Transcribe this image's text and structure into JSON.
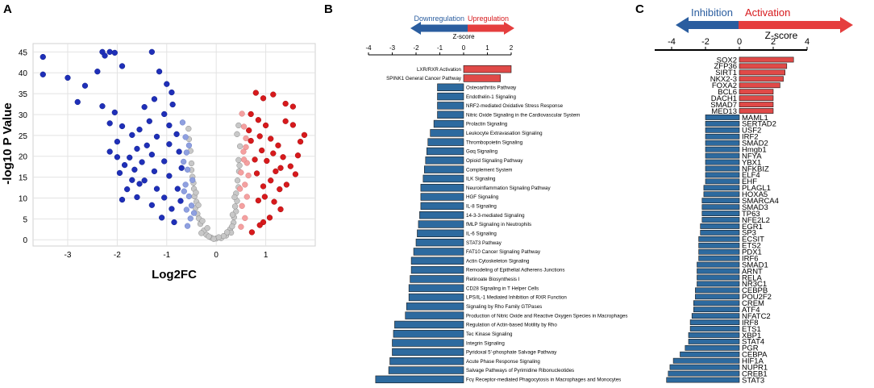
{
  "panels": {
    "a": "A",
    "b": "B",
    "c": "C"
  },
  "colors": {
    "up_dark": "#d7191c",
    "up_light": "#f4a0a0",
    "down_dark": "#1f2fb8",
    "down_light": "#8fa0e0",
    "neutral": "#c8c8c8",
    "bar_neg": "#2d6a9f",
    "bar_pos": "#e04a48",
    "arrow_blue": "#2a5d9f",
    "arrow_red": "#e53e3e"
  },
  "chart_data": [
    {
      "type": "scatter",
      "panel": "A",
      "title": "",
      "xlabel": "Log2FC",
      "ylabel": "-log10 P Value",
      "xlim": [
        -3.7,
        2.0
      ],
      "ylim": [
        -1.5,
        47
      ],
      "xticks": [
        -3,
        -2,
        -1,
        0,
        1
      ],
      "yticks": [
        0,
        5,
        10,
        15,
        20,
        25,
        30,
        35,
        40,
        45
      ],
      "grid": true,
      "legend": "none",
      "points_up_strong": [
        [
          0.8,
          35.2
        ],
        [
          0.95,
          33.9
        ],
        [
          1.15,
          34.8
        ],
        [
          1.4,
          32.6
        ],
        [
          1.55,
          31.9
        ],
        [
          1.4,
          28.4
        ],
        [
          1.55,
          27.5
        ],
        [
          1.7,
          23.5
        ],
        [
          1.78,
          25.1
        ],
        [
          1.65,
          20.2
        ],
        [
          1.5,
          17.6
        ],
        [
          1.6,
          15.7
        ],
        [
          1.42,
          13.2
        ],
        [
          1.28,
          12.1
        ],
        [
          1.17,
          9.1
        ],
        [
          1.3,
          7.3
        ],
        [
          1.08,
          5.3
        ],
        [
          0.95,
          4.2
        ],
        [
          0.88,
          3.5
        ],
        [
          0.72,
          1.8
        ],
        [
          0.7,
          30.1
        ],
        [
          0.85,
          28.7
        ],
        [
          1.0,
          27.4
        ],
        [
          1.1,
          24.2
        ],
        [
          1.25,
          22.6
        ],
        [
          1.35,
          19.8
        ],
        [
          0.92,
          21.4
        ],
        [
          1.02,
          18.9
        ],
        [
          1.2,
          16.4
        ],
        [
          1.1,
          14.2
        ],
        [
          0.95,
          12.8
        ],
        [
          0.82,
          15.9
        ],
        [
          0.78,
          19.2
        ],
        [
          0.7,
          23.7
        ],
        [
          0.66,
          26.2
        ],
        [
          0.88,
          24.8
        ],
        [
          1.15,
          20.7
        ],
        [
          1.3,
          17.2
        ],
        [
          0.98,
          10.3
        ],
        [
          0.85,
          9.4
        ]
      ],
      "points_down_strong": [
        [
          -3.5,
          43.8
        ],
        [
          -3.5,
          39.6
        ],
        [
          -3.0,
          38.8
        ],
        [
          -2.3,
          45.0
        ],
        [
          -2.25,
          44.1
        ],
        [
          -2.15,
          45.0
        ],
        [
          -2.05,
          44.8
        ],
        [
          -1.9,
          41.6
        ],
        [
          -2.4,
          40.3
        ],
        [
          -2.65,
          36.9
        ],
        [
          -2.8,
          33.0
        ],
        [
          -2.3,
          32.0
        ],
        [
          -2.05,
          30.5
        ],
        [
          -2.15,
          27.9
        ],
        [
          -1.9,
          27.2
        ],
        [
          -1.7,
          25.1
        ],
        [
          -2.0,
          23.5
        ],
        [
          -2.15,
          21.1
        ],
        [
          -2.0,
          19.8
        ],
        [
          -1.85,
          17.9
        ],
        [
          -1.95,
          16.0
        ],
        [
          -1.7,
          14.3
        ],
        [
          -1.8,
          12.1
        ],
        [
          -1.6,
          10.2
        ],
        [
          -1.9,
          9.6
        ],
        [
          -1.3,
          45.0
        ],
        [
          -1.15,
          40.3
        ],
        [
          -1.0,
          37.3
        ],
        [
          -0.9,
          35.3
        ],
        [
          -1.25,
          33.7
        ],
        [
          -1.45,
          31.8
        ],
        [
          -1.05,
          30.1
        ],
        [
          -1.35,
          28.4
        ],
        [
          -1.55,
          26.4
        ],
        [
          -0.95,
          27.4
        ],
        [
          -1.2,
          24.7
        ],
        [
          -1.4,
          22.6
        ],
        [
          -0.95,
          22.9
        ],
        [
          -1.3,
          20.4
        ],
        [
          -1.5,
          18.6
        ],
        [
          -1.05,
          18.8
        ],
        [
          -1.25,
          16.4
        ],
        [
          -1.45,
          14.2
        ],
        [
          -0.95,
          15.3
        ],
        [
          -1.2,
          12.2
        ],
        [
          -1.05,
          10.1
        ],
        [
          -1.3,
          8.3
        ],
        [
          -0.9,
          7.4
        ],
        [
          -1.1,
          5.3
        ],
        [
          -0.85,
          4.2
        ],
        [
          -0.8,
          25.3
        ],
        [
          -0.75,
          21.1
        ],
        [
          -0.7,
          17.2
        ],
        [
          -0.78,
          12.2
        ],
        [
          -0.72,
          9.3
        ],
        [
          -1.6,
          21.8
        ],
        [
          -1.75,
          19.7
        ],
        [
          -1.65,
          16.8
        ],
        [
          -1.55,
          13.4
        ],
        [
          -0.88,
          32.4
        ]
      ],
      "points_down_light": [
        [
          -0.68,
          28.1
        ],
        [
          -0.62,
          24.6
        ],
        [
          -0.6,
          20.9
        ],
        [
          -0.58,
          16.8
        ],
        [
          -0.62,
          13.2
        ],
        [
          -0.55,
          10.4
        ],
        [
          -0.6,
          7.2
        ],
        [
          -0.52,
          5.1
        ],
        [
          -0.66,
          18.7
        ],
        [
          -0.55,
          22.6
        ],
        [
          -0.48,
          14.3
        ],
        [
          -0.65,
          11.6
        ],
        [
          -0.5,
          8.2
        ],
        [
          -0.58,
          3.3
        ],
        [
          -0.45,
          6.4
        ]
      ],
      "points_up_light": [
        [
          0.52,
          30.2
        ],
        [
          0.56,
          27.1
        ],
        [
          0.6,
          24.3
        ],
        [
          0.55,
          21.1
        ],
        [
          0.62,
          18.4
        ],
        [
          0.5,
          16.1
        ],
        [
          0.58,
          13.2
        ],
        [
          0.62,
          10.3
        ],
        [
          0.52,
          8.1
        ],
        [
          0.58,
          5.2
        ],
        [
          0.5,
          3.1
        ],
        [
          0.65,
          15.4
        ],
        [
          0.56,
          19.2
        ],
        [
          0.48,
          12.2
        ],
        [
          0.6,
          22.2
        ]
      ],
      "points_neutral": [
        [
          0.0,
          0.3
        ],
        [
          -0.1,
          0.5
        ],
        [
          0.1,
          0.4
        ],
        [
          -0.2,
          1.2
        ],
        [
          0.2,
          1.0
        ],
        [
          -0.25,
          2.2
        ],
        [
          0.28,
          2.5
        ],
        [
          -0.32,
          3.8
        ],
        [
          0.35,
          4.1
        ],
        [
          -0.38,
          6.2
        ],
        [
          0.4,
          6.8
        ],
        [
          -0.4,
          9.1
        ],
        [
          0.42,
          9.3
        ],
        [
          -0.45,
          12.2
        ],
        [
          0.45,
          12.6
        ],
        [
          -0.48,
          15.1
        ],
        [
          0.46,
          16.4
        ],
        [
          -0.5,
          18.3
        ],
        [
          0.45,
          19.1
        ],
        [
          -0.52,
          21.3
        ],
        [
          0.48,
          22.4
        ],
        [
          -0.55,
          24.1
        ],
        [
          0.42,
          25.3
        ],
        [
          -0.56,
          26.6
        ],
        [
          0.45,
          27.4
        ],
        [
          -0.15,
          0.8
        ],
        [
          0.15,
          0.9
        ],
        [
          -0.3,
          1.6
        ],
        [
          0.3,
          1.7
        ],
        [
          -0.35,
          5.1
        ],
        [
          0.36,
          5.4
        ],
        [
          -0.42,
          7.6
        ],
        [
          0.38,
          8.0
        ],
        [
          -0.44,
          10.4
        ],
        [
          0.4,
          11.1
        ],
        [
          -0.46,
          13.6
        ],
        [
          0.43,
          14.2
        ],
        [
          -0.5,
          16.7
        ],
        [
          0.47,
          17.8
        ],
        [
          0.05,
          0.6
        ],
        [
          -0.05,
          0.2
        ],
        [
          0.22,
          1.8
        ],
        [
          -0.18,
          2.8
        ],
        [
          0.32,
          3.2
        ],
        [
          -0.28,
          4.5
        ],
        [
          0.33,
          6.0
        ],
        [
          -0.36,
          8.3
        ],
        [
          0.37,
          10.2
        ],
        [
          -0.41,
          11.3
        ]
      ]
    },
    {
      "type": "bar",
      "panel": "B",
      "orientation": "horizontal",
      "xlabel": "Z-score",
      "arrow_left_label": "Downregulation",
      "arrow_right_label": "Upregulation",
      "xlim": [
        -4,
        2
      ],
      "xticks": [
        -4,
        -3,
        -2,
        -1,
        0,
        1,
        2
      ],
      "categories": [
        "LXR/RXR Activation",
        "SPINK1 General Cancer Pathway",
        "Osteoarthritis Pathway",
        "Endothelin-1 Signaling",
        "NRF2-mediated Oxidative Stress Response",
        "Nitric Oxide Signaling in the Cardiovascular System",
        "Prolactin Signaling",
        "Leukocyte Extravasation Signaling",
        "Thrombopoietin Signaling",
        "Gαq Signaling",
        "Opioid Signaling Pathway",
        "Complement System",
        "ILK Signaling",
        "Neuroinflammation Signaling Pathway",
        "HGF Signaling",
        "IL-8 Signaling",
        "14-3-3-mediated Signaling",
        "fMLP Signaling in Neutrophils",
        "IL-6 Signaling",
        "STAT3 Pathway",
        "FAT10 Cancer Signaling Pathway",
        "Actin Cytoskeleton Signaling",
        "Remodeling of Epithelial Adherens Junctions",
        "Retinoate Biosynthesis I",
        "CD28 Signaling in T Helper Cells",
        "LPS/IL-1 Mediated Inhibition of RXR Function",
        "Signaling by Rho Family GTPases",
        "Production of Nitric Oxide and Reactive Oxygen Species in Macrophages",
        "Regulation of Actin-based Motility by Rho",
        "Tec Kinase Signaling",
        "Integrin Signaling",
        "Pyridoxal 5'-phosphate Salvage Pathway",
        "Acute Phase Response Signaling",
        "Salvage Pathways of Pyrimidine Ribonucleotides",
        "Fcγ Receptor-mediated Phagocytosis in Macrophages and Monocytes"
      ],
      "values": [
        2.0,
        1.55,
        -1.1,
        -1.1,
        -1.1,
        -1.1,
        -1.25,
        -1.4,
        -1.5,
        -1.55,
        -1.6,
        -1.65,
        -1.7,
        -1.8,
        -1.8,
        -1.8,
        -1.85,
        -1.9,
        -1.95,
        -2.0,
        -2.1,
        -2.2,
        -2.2,
        -2.25,
        -2.3,
        -2.3,
        -2.4,
        -2.45,
        -2.9,
        -2.95,
        -3.0,
        -3.0,
        -3.1,
        -3.15,
        -3.7
      ]
    },
    {
      "type": "bar",
      "panel": "C",
      "orientation": "horizontal",
      "xlabel": "Z-score",
      "arrow_left_label": "Inhibition",
      "arrow_right_label": "Activation",
      "xlim": [
        -5,
        4
      ],
      "xticks": [
        -4,
        -2,
        0,
        2,
        4
      ],
      "categories": [
        "SOX2",
        "ZFP36",
        "SIRT1",
        "NKX2-3",
        "FOXA2",
        "BCL6",
        "DACH1",
        "SMAD7",
        "MED13",
        "MAML1",
        "SERTAD2",
        "USF2",
        "IRF2",
        "SMAD2",
        "Hmgb1",
        "NFYA",
        "YBX1",
        "NFKBIZ",
        "ELF4",
        "EHF",
        "PLAGL1",
        "HOXA5",
        "SMARCA4",
        "SMAD3",
        "TP63",
        "NFE2L2",
        "EGR1",
        "SP3",
        "ECSIT",
        "ETS2",
        "PDX1",
        "IRF6",
        "SMAD1",
        "ARNT",
        "RELA",
        "NR3C1",
        "CEBPB",
        "POU2F2",
        "CREM",
        "ATF4",
        "NFATC2",
        "IRF8",
        "ETS1",
        "XBP1",
        "STAT4",
        "PGR",
        "CEBPA",
        "HIF1A",
        "NUPR1",
        "CREB1",
        "STAT3"
      ],
      "values": [
        3.2,
        2.8,
        2.7,
        2.6,
        2.4,
        2.0,
        2.0,
        2.0,
        2.0,
        -2.0,
        -2.0,
        -2.0,
        -2.0,
        -2.0,
        -2.0,
        -2.0,
        -2.0,
        -2.0,
        -2.0,
        -2.0,
        -2.1,
        -2.1,
        -2.2,
        -2.2,
        -2.2,
        -2.2,
        -2.3,
        -2.3,
        -2.4,
        -2.4,
        -2.4,
        -2.4,
        -2.5,
        -2.5,
        -2.5,
        -2.5,
        -2.6,
        -2.6,
        -2.7,
        -2.7,
        -2.8,
        -2.9,
        -2.9,
        -3.0,
        -3.0,
        -3.2,
        -3.5,
        -3.9,
        -4.1,
        -4.2,
        -4.3
      ]
    }
  ]
}
